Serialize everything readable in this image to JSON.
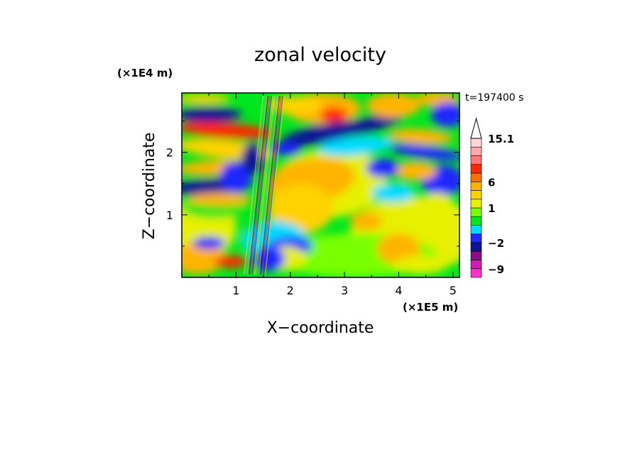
{
  "chart_data": {
    "type": "heatmap",
    "title": "zonal velocity",
    "xlabel": "X−coordinate",
    "ylabel": "Z−coordinate",
    "x_scale_label": "(×1E5 m)",
    "y_scale_label": "(×1E4 m)",
    "time_label": "t=197400 s",
    "xlim": [
      0,
      5.12
    ],
    "ylim": [
      0,
      2.95
    ],
    "x_ticks": [
      1,
      2,
      3,
      4,
      5
    ],
    "x_tick_labels": [
      "1",
      "2",
      "3",
      "4",
      "5"
    ],
    "y_ticks": [
      1,
      2
    ],
    "y_tick_labels": [
      "1",
      "2"
    ],
    "colorbar": {
      "levels": [
        -12,
        -9,
        -6,
        -4,
        -2,
        -1,
        0,
        0.5,
        1,
        2,
        4,
        6,
        8,
        10,
        12,
        15.1
      ],
      "colors": [
        "#ff33cc",
        "#d21ab4",
        "#8a0e8c",
        "#0b1496",
        "#1e28ff",
        "#00dcff",
        "#00e61e",
        "#78ff00",
        "#e6f000",
        "#ffd200",
        "#ffb400",
        "#ff6e00",
        "#ff2800",
        "#ff7878",
        "#ffaaaa",
        "#ffd6d6"
      ],
      "tick_values": [
        15.1,
        6,
        1,
        -2,
        -9
      ],
      "tick_labels": [
        "15.1",
        "6",
        "1",
        "−2",
        "−9"
      ],
      "extend_max": true
    },
    "field_description": [
      {
        "feature": "upper-level jet core",
        "x": 2.8,
        "z": 2.6,
        "value": 8
      },
      {
        "feature": "strong easterly band",
        "x": 2.5,
        "z": 2.25,
        "value": -6
      },
      {
        "feature": "mid-level westerly region",
        "x": 2.6,
        "z": 1.3,
        "value": 4
      },
      {
        "feature": "low-level easterly",
        "x": 1.9,
        "z": 0.5,
        "value": -4
      }
    ]
  }
}
